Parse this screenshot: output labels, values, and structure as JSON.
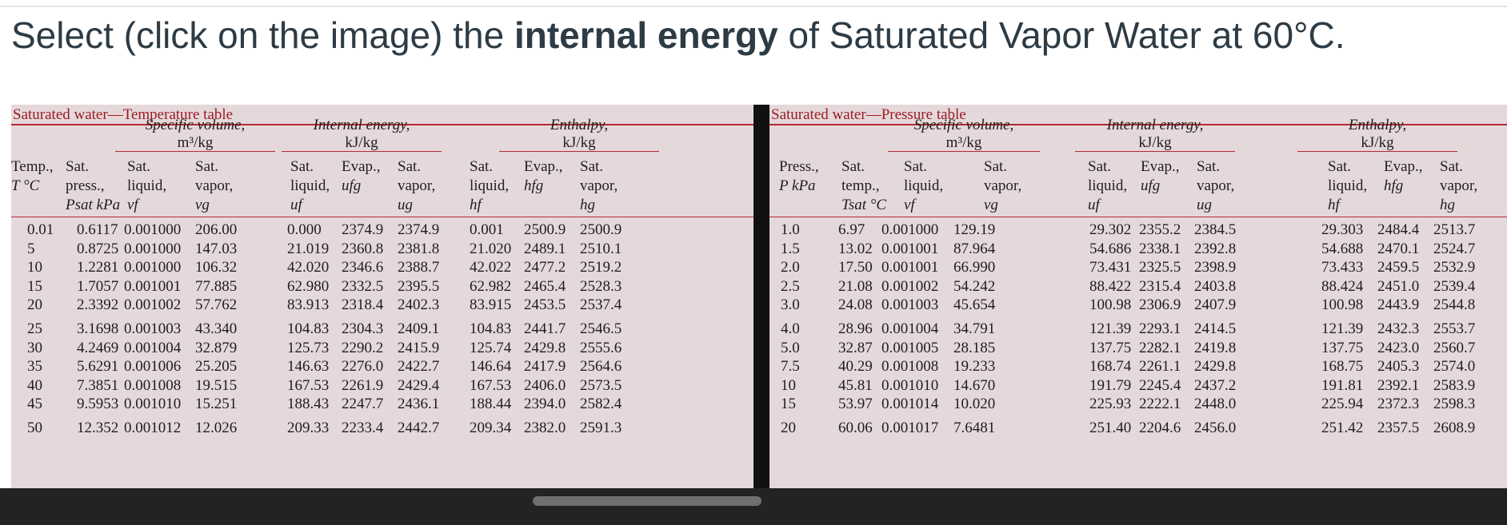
{
  "question": {
    "prefix": "Select (click on the image) the ",
    "bold": "internal energy",
    "suffix": " of Saturated Vapor Water at 60°C."
  },
  "temp_table": {
    "title": "Saturated water—Temperature table",
    "groups": [
      {
        "label": "Specific volume,",
        "unit": "m³/kg"
      },
      {
        "label": "Internal energy,",
        "unit": "kJ/kg"
      },
      {
        "label": "Enthalpy,",
        "unit": "kJ/kg"
      }
    ],
    "columns": [
      {
        "l1": "",
        "l2": "Temp.,",
        "l3": "T °C"
      },
      {
        "l1": "Sat.",
        "l2": "press.,",
        "l3": "Psat kPa"
      },
      {
        "l1": "Sat.",
        "l2": "liquid,",
        "l3": "vf"
      },
      {
        "l1": "Sat.",
        "l2": "vapor,",
        "l3": "vg"
      },
      {
        "l1": "Sat.",
        "l2": "liquid,",
        "l3": "uf"
      },
      {
        "l1": "",
        "l2": "Evap.,",
        "l3": "ufg"
      },
      {
        "l1": "Sat.",
        "l2": "vapor,",
        "l3": "ug"
      },
      {
        "l1": "Sat.",
        "l2": "liquid,",
        "l3": "hf"
      },
      {
        "l1": "",
        "l2": "Evap.,",
        "l3": "hfg"
      },
      {
        "l1": "Sat.",
        "l2": "vapor,",
        "l3": "hg"
      }
    ],
    "rows": [
      [
        "0.01",
        "0.6117",
        "0.001000",
        "206.00",
        "0.000",
        "2374.9",
        "2374.9",
        "0.001",
        "2500.9",
        "2500.9"
      ],
      [
        "5",
        "0.8725",
        "0.001000",
        "147.03",
        "21.019",
        "2360.8",
        "2381.8",
        "21.020",
        "2489.1",
        "2510.1"
      ],
      [
        "10",
        "1.2281",
        "0.001000",
        "106.32",
        "42.020",
        "2346.6",
        "2388.7",
        "42.022",
        "2477.2",
        "2519.2"
      ],
      [
        "15",
        "1.7057",
        "0.001001",
        "77.885",
        "62.980",
        "2332.5",
        "2395.5",
        "62.982",
        "2465.4",
        "2528.3"
      ],
      [
        "20",
        "2.3392",
        "0.001002",
        "57.762",
        "83.913",
        "2318.4",
        "2402.3",
        "83.915",
        "2453.5",
        "2537.4"
      ],
      [
        "25",
        "3.1698",
        "0.001003",
        "43.340",
        "104.83",
        "2304.3",
        "2409.1",
        "104.83",
        "2441.7",
        "2546.5"
      ],
      [
        "30",
        "4.2469",
        "0.001004",
        "32.879",
        "125.73",
        "2290.2",
        "2415.9",
        "125.74",
        "2429.8",
        "2555.6"
      ],
      [
        "35",
        "5.6291",
        "0.001006",
        "25.205",
        "146.63",
        "2276.0",
        "2422.7",
        "146.64",
        "2417.9",
        "2564.6"
      ],
      [
        "40",
        "7.3851",
        "0.001008",
        "19.515",
        "167.53",
        "2261.9",
        "2429.4",
        "167.53",
        "2406.0",
        "2573.5"
      ],
      [
        "45",
        "9.5953",
        "0.001010",
        "15.251",
        "188.43",
        "2247.7",
        "2436.1",
        "188.44",
        "2394.0",
        "2582.4"
      ],
      [
        "50",
        "12.352",
        "0.001012",
        "12.026",
        "209.33",
        "2233.4",
        "2442.7",
        "209.34",
        "2382.0",
        "2591.3"
      ]
    ]
  },
  "pressure_table": {
    "title": "Saturated water—Pressure table",
    "groups": [
      {
        "label": "Specific volume,",
        "unit": "m³/kg"
      },
      {
        "label": "Internal energy,",
        "unit": "kJ/kg"
      },
      {
        "label": "Enthalpy,",
        "unit": "kJ/kg"
      }
    ],
    "columns": [
      {
        "l1": "",
        "l2": "Press.,",
        "l3": "P kPa"
      },
      {
        "l1": "Sat.",
        "l2": "temp.,",
        "l3": "Tsat °C"
      },
      {
        "l1": "Sat.",
        "l2": "liquid,",
        "l3": "vf"
      },
      {
        "l1": "Sat.",
        "l2": "vapor,",
        "l3": "vg"
      },
      {
        "l1": "Sat.",
        "l2": "liquid,",
        "l3": "uf"
      },
      {
        "l1": "",
        "l2": "Evap.,",
        "l3": "ufg"
      },
      {
        "l1": "Sat.",
        "l2": "vapor,",
        "l3": "ug"
      },
      {
        "l1": "Sat.",
        "l2": "liquid,",
        "l3": "hf"
      },
      {
        "l1": "",
        "l2": "Evap.,",
        "l3": "hfg"
      },
      {
        "l1": "Sat.",
        "l2": "vapor,",
        "l3": "hg"
      }
    ],
    "rows": [
      [
        "1.0",
        "6.97",
        "0.001000",
        "129.19",
        "29.302",
        "2355.2",
        "2384.5",
        "29.303",
        "2484.4",
        "2513.7"
      ],
      [
        "1.5",
        "13.02",
        "0.001001",
        "87.964",
        "54.686",
        "2338.1",
        "2392.8",
        "54.688",
        "2470.1",
        "2524.7"
      ],
      [
        "2.0",
        "17.50",
        "0.001001",
        "66.990",
        "73.431",
        "2325.5",
        "2398.9",
        "73.433",
        "2459.5",
        "2532.9"
      ],
      [
        "2.5",
        "21.08",
        "0.001002",
        "54.242",
        "88.422",
        "2315.4",
        "2403.8",
        "88.424",
        "2451.0",
        "2539.4"
      ],
      [
        "3.0",
        "24.08",
        "0.001003",
        "45.654",
        "100.98",
        "2306.9",
        "2407.9",
        "100.98",
        "2443.9",
        "2544.8"
      ],
      [
        "4.0",
        "28.96",
        "0.001004",
        "34.791",
        "121.39",
        "2293.1",
        "2414.5",
        "121.39",
        "2432.3",
        "2553.7"
      ],
      [
        "5.0",
        "32.87",
        "0.001005",
        "28.185",
        "137.75",
        "2282.1",
        "2419.8",
        "137.75",
        "2423.0",
        "2560.7"
      ],
      [
        "7.5",
        "40.29",
        "0.001008",
        "19.233",
        "168.74",
        "2261.1",
        "2429.8",
        "168.75",
        "2405.3",
        "2574.0"
      ],
      [
        "10",
        "45.81",
        "0.001010",
        "14.670",
        "191.79",
        "2245.4",
        "2437.2",
        "191.81",
        "2392.1",
        "2583.9"
      ],
      [
        "15",
        "53.97",
        "0.001014",
        "10.020",
        "225.93",
        "2222.1",
        "2448.0",
        "225.94",
        "2372.3",
        "2598.3"
      ],
      [
        "20",
        "60.06",
        "0.001017",
        "7.6481",
        "251.40",
        "2204.6",
        "2456.0",
        "251.42",
        "2357.5",
        "2608.9"
      ]
    ]
  }
}
